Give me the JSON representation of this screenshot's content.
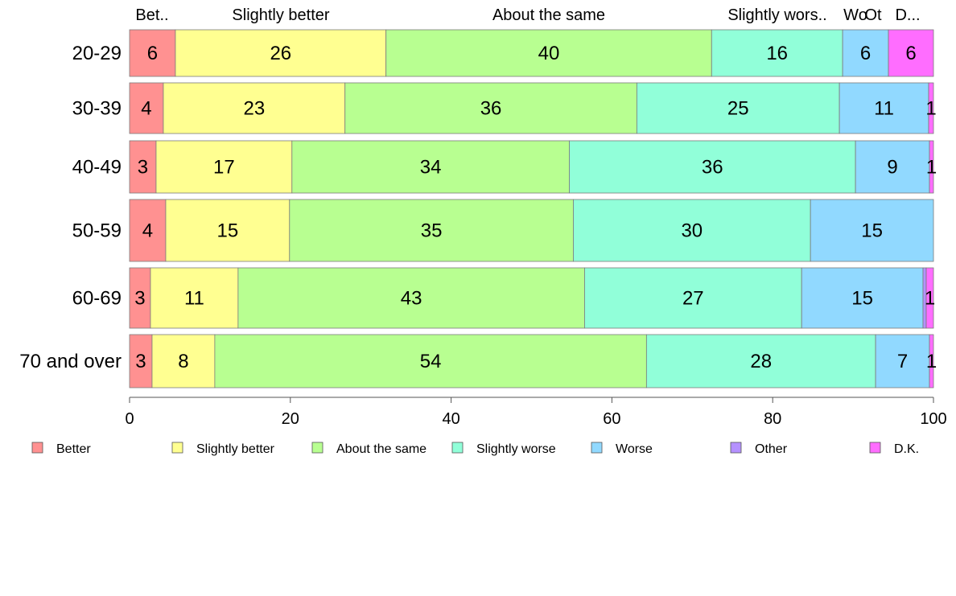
{
  "chart_data": {
    "type": "bar",
    "orientation": "horizontal",
    "stacked": true,
    "categories": [
      "20-29",
      "30-39",
      "40-49",
      "50-59",
      "60-69",
      "70 and over"
    ],
    "xlim": [
      0,
      100
    ],
    "x_ticks": [
      0,
      20,
      40,
      60,
      80,
      100
    ],
    "grid": false,
    "legend_position": "bottom",
    "top_labels": [
      "Bet..",
      "Slightly better",
      "About the same",
      "Slightly wors..",
      "Wo",
      "Ot",
      "D..."
    ],
    "series": [
      {
        "name": "Better",
        "color": "#ff9191",
        "values": [
          5.7,
          4.2,
          3.3,
          4.5,
          2.6,
          2.8
        ],
        "labels": [
          "6",
          "4",
          "3",
          "4",
          "3",
          "3"
        ]
      },
      {
        "name": "Slightly better",
        "color": "#ffff91",
        "values": [
          26.2,
          22.6,
          16.9,
          15.4,
          10.9,
          7.8
        ],
        "labels": [
          "26",
          "23",
          "17",
          "15",
          "11",
          "8"
        ]
      },
      {
        "name": "About the same",
        "color": "#b8ff91",
        "values": [
          40.5,
          36.3,
          34.5,
          35.3,
          43.1,
          53.7
        ],
        "labels": [
          "40",
          "36",
          "34",
          "35",
          "43",
          "54"
        ]
      },
      {
        "name": "Slightly worse",
        "color": "#91ffd9",
        "values": [
          16.3,
          25.2,
          35.6,
          29.5,
          27.0,
          28.5
        ],
        "labels": [
          "16",
          "25",
          "36",
          "30",
          "27",
          "28"
        ]
      },
      {
        "name": "Worse",
        "color": "#91d9ff",
        "values": [
          5.7,
          11.1,
          9.2,
          15.3,
          15.1,
          6.7
        ],
        "labels": [
          "6",
          "11",
          "9",
          "15",
          "15",
          "7"
        ]
      },
      {
        "name": "Other",
        "color": "#b591ff",
        "values": [
          0.0,
          0.0,
          0.0,
          0.0,
          0.4,
          0.0
        ],
        "labels": [
          "",
          "",
          "",
          "",
          "",
          ""
        ]
      },
      {
        "name": "D.K.",
        "color": "#ff6dff",
        "values": [
          5.6,
          0.6,
          0.5,
          0.0,
          0.9,
          0.5
        ],
        "labels": [
          "6",
          "1",
          "1",
          "",
          "1",
          "1"
        ]
      }
    ]
  }
}
